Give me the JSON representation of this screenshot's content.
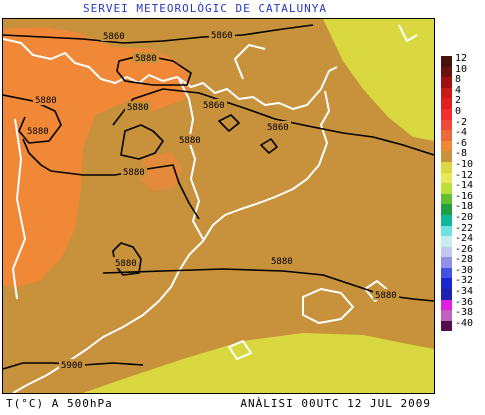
{
  "header": {
    "title": "SERVEI METEOROLÒGIC DE CATALUNYA"
  },
  "footer": {
    "variable": "T(°C) A 500hPa",
    "analysis": "ANÀLISI 00UTC 12 JUL 2009"
  },
  "legend": {
    "items": [
      {
        "label": "12",
        "color": "#4a1010"
      },
      {
        "label": "10",
        "color": "#6b0f0f"
      },
      {
        "label": "8",
        "color": "#a01010"
      },
      {
        "label": "4",
        "color": "#c81818"
      },
      {
        "label": "2",
        "color": "#e02020"
      },
      {
        "label": "0",
        "color": "#f03030"
      },
      {
        "label": "-2",
        "color": "#ee4a3a"
      },
      {
        "label": "-4",
        "color": "#ea6a3a"
      },
      {
        "label": "-6",
        "color": "#f08838"
      },
      {
        "label": "-8",
        "color": "#c8913b"
      },
      {
        "label": "-10",
        "color": "#d9d840"
      },
      {
        "label": "-12",
        "color": "#e8e85a"
      },
      {
        "label": "-14",
        "color": "#b8e038"
      },
      {
        "label": "-16",
        "color": "#60c030"
      },
      {
        "label": "-18",
        "color": "#20a040"
      },
      {
        "label": "-20",
        "color": "#10b89a"
      },
      {
        "label": "-22",
        "color": "#70e0e0"
      },
      {
        "label": "-24",
        "color": "#c8ecec"
      },
      {
        "label": "-26",
        "color": "#c0c8f0"
      },
      {
        "label": "-28",
        "color": "#9090e8"
      },
      {
        "label": "-30",
        "color": "#4850e0"
      },
      {
        "label": "-32",
        "color": "#1828d0"
      },
      {
        "label": "-34",
        "color": "#2020b0"
      },
      {
        "label": "-36",
        "color": "#e020e0"
      },
      {
        "label": "-38",
        "color": "#c060c0"
      },
      {
        "label": "-40",
        "color": "#501050"
      }
    ]
  },
  "map": {
    "base_color": "#c8913b",
    "warm_color": "#f08838",
    "cold_color": "#d9d840",
    "coast_color": "#ffffff",
    "contour_color": "#000000",
    "contour_labels": [
      "5860",
      "5860",
      "5880",
      "5880",
      "5880",
      "5860",
      "5880",
      "5880",
      "5880",
      "5860",
      "5880",
      "5880",
      "5880",
      "5900"
    ]
  }
}
